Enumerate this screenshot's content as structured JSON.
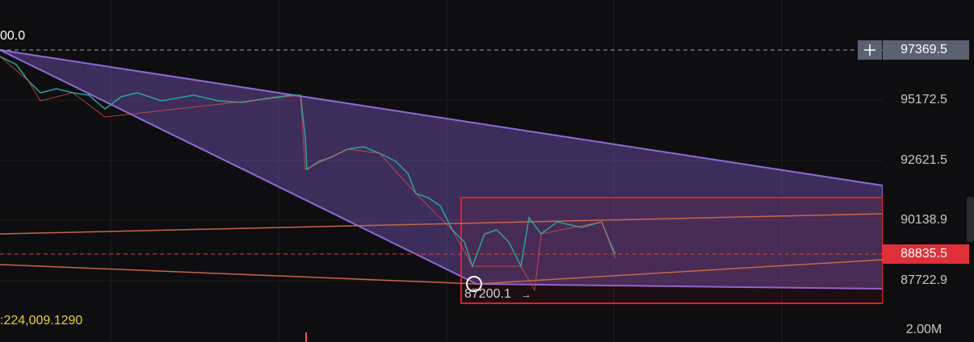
{
  "price_axis": {
    "labels": [
      "95172.5",
      "92621.5",
      "90138.9",
      "87722.9"
    ],
    "volume_label": "2.00M"
  },
  "crosshair_price": "97369.5",
  "last_price": "88835.5",
  "overlay": {
    "top_left_value": "00.0",
    "low_marker": "87200.1",
    "low_arrow": "→",
    "volume_readout": ":224,009.1290"
  }
}
